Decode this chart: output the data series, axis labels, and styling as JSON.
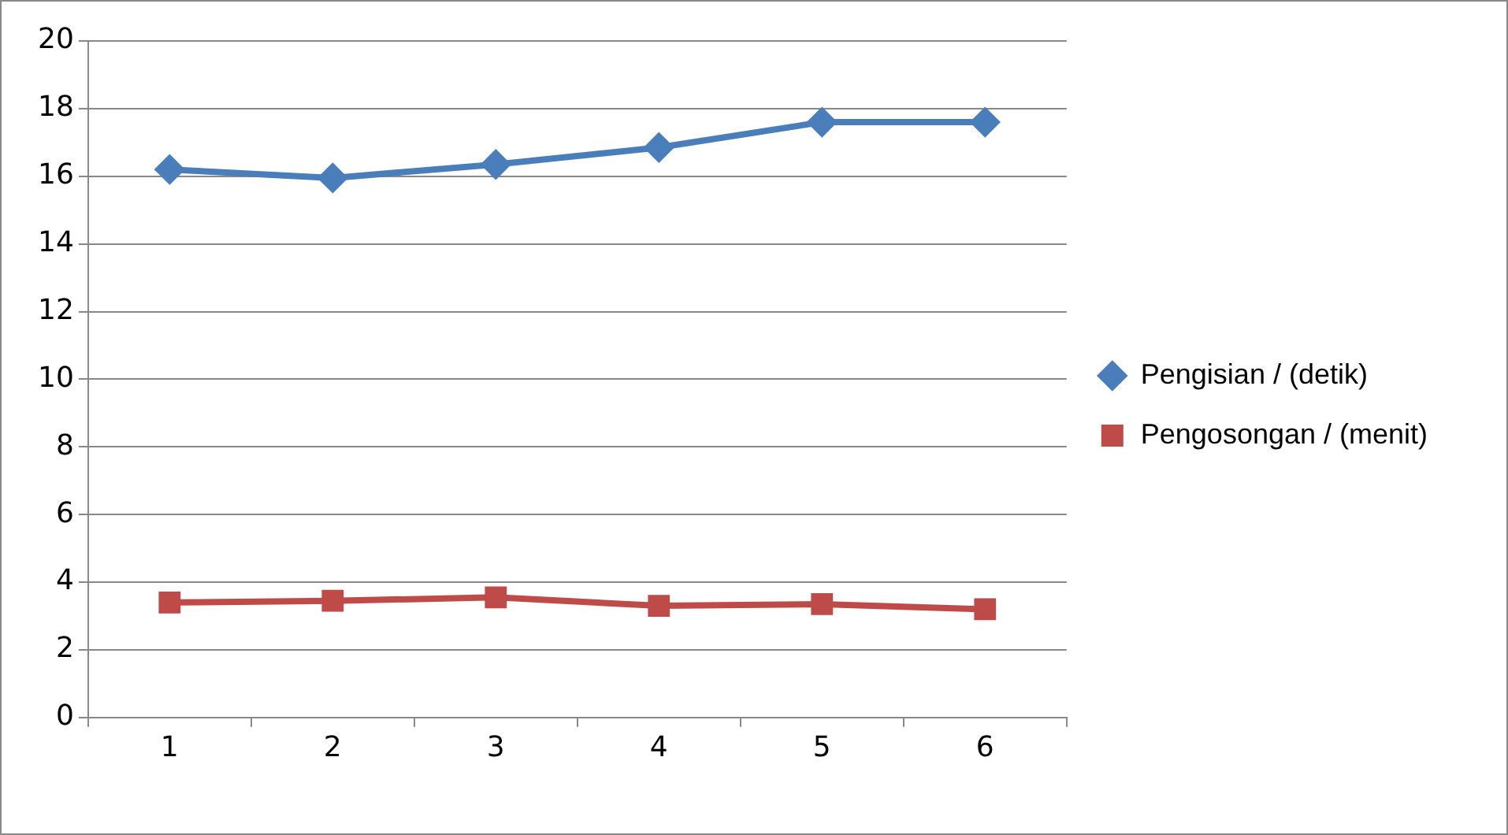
{
  "chart_data": {
    "type": "line",
    "categories": [
      "1",
      "2",
      "3",
      "4",
      "5",
      "6"
    ],
    "series": [
      {
        "name": "Pengisian / (detik)",
        "color": "#4a7ebb",
        "marker": "diamond",
        "values": [
          16.2,
          15.95,
          16.35,
          16.85,
          17.6,
          17.6
        ]
      },
      {
        "name": "Pengosongan / (menit)",
        "color": "#be4b48",
        "marker": "square",
        "values": [
          3.4,
          3.45,
          3.55,
          3.3,
          3.35,
          3.2
        ]
      }
    ],
    "ylim": [
      0,
      20
    ],
    "yticks": [
      0,
      2,
      4,
      6,
      8,
      10,
      12,
      14,
      16,
      18,
      20
    ],
    "grid": "y",
    "legend": "right"
  }
}
